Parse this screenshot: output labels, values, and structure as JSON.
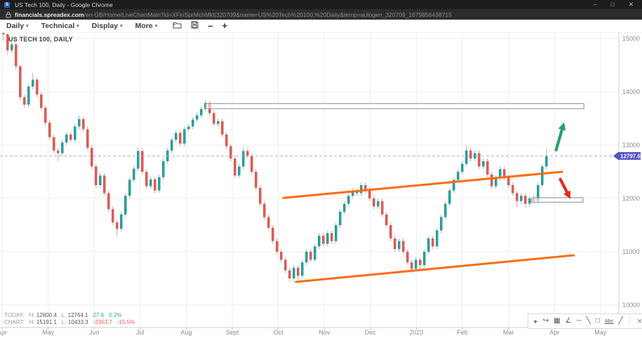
{
  "browser": {
    "title": "US Tech 100, Daily - Google Chrome",
    "favicon_letter": "S",
    "url_domain": "financials.spreadex.com",
    "url_path": "/en-GB/Home/LiveChartMain?id=XFinSprMchMkt|320709&name=US%20Tech%20100,%20Daily&temp=autogen_320709_1679856438715",
    "window_controls": {
      "minimize": "–",
      "maximize": "□",
      "close": "✕"
    }
  },
  "toolbar": {
    "caret": "▾",
    "menus": [
      {
        "label": "Daily"
      },
      {
        "label": "Technical"
      },
      {
        "label": "Display"
      },
      {
        "label": "More"
      }
    ],
    "zoom_out_label": "–",
    "zoom_in_label": "+"
  },
  "chart_title": "US TECH 100, DAILY",
  "stats": {
    "today": {
      "label": "TODAY:",
      "h_label": "H:",
      "h": "12800.4",
      "l_label": "L:",
      "l": "12764.1",
      "chg": "27.6",
      "chg_pct": "0.2%"
    },
    "chart": {
      "label": "CHART:",
      "h_label": "H:",
      "h": "15191.1",
      "l_label": "L:",
      "l": "10433.3",
      "chg": "-2353.7",
      "chg_pct": "-15.5%"
    }
  },
  "drawing_toolbar": {
    "icons": [
      {
        "name": "pointer",
        "glyph": "➤",
        "interactable": true
      },
      {
        "name": "undo",
        "glyph": "↪",
        "interactable": true
      },
      {
        "name": "grid",
        "glyph": "▦",
        "interactable": true
      },
      {
        "name": "axes",
        "glyph": "∠",
        "interactable": true
      },
      {
        "name": "horizontal-line",
        "glyph": "─",
        "interactable": true
      },
      {
        "name": "trendline",
        "glyph": "╲",
        "interactable": true
      },
      {
        "name": "rectangle",
        "glyph": "□",
        "interactable": true
      },
      {
        "name": "text",
        "glyph": "Abc",
        "interactable": true
      },
      {
        "name": "freehand",
        "glyph": "╱",
        "interactable": true
      },
      {
        "name": "divider",
        "glyph": "│",
        "interactable": false
      },
      {
        "name": "close",
        "glyph": "✕",
        "interactable": true
      }
    ]
  },
  "chart_data": {
    "type": "candlestick",
    "symbol": "US TECH 100, DAILY",
    "timeframe": "Daily",
    "current_price": 12797.6,
    "y_ticks": [
      15000,
      14000,
      13000,
      12000,
      11000,
      10000
    ],
    "x_labels": [
      "Apr",
      "May",
      "Jun",
      "Jul",
      "Aug",
      "Sept",
      "Oct",
      "Nov",
      "Dec",
      "2023",
      "Feb",
      "Mar",
      "Apr",
      "May"
    ],
    "colors": {
      "up": "#2a9fa0",
      "down": "#dd5c55",
      "wick": "#a6a6a6",
      "grid": "#ededed",
      "axis": "#cfcfcf",
      "tick_text": "#8c8c8c",
      "price_line": "#a9a9e6",
      "price_tag_bg": "#5452c6",
      "price_tag_text": "#ffffff"
    },
    "candles_ohlc": [
      [
        15190,
        15191,
        14960,
        15080
      ],
      [
        15080,
        15120,
        14700,
        14780
      ],
      [
        14780,
        14940,
        14730,
        14890
      ],
      [
        14890,
        14910,
        14420,
        14480
      ],
      [
        14480,
        14500,
        13840,
        13900
      ],
      [
        13900,
        13950,
        13700,
        13760
      ],
      [
        13760,
        14150,
        13710,
        14100
      ],
      [
        14100,
        14350,
        14050,
        14230
      ],
      [
        14230,
        14280,
        13900,
        13950
      ],
      [
        13950,
        14000,
        13650,
        13700
      ],
      [
        13700,
        13750,
        13370,
        13420
      ],
      [
        13420,
        13470,
        13100,
        13150
      ],
      [
        13150,
        13200,
        12850,
        12900
      ],
      [
        12900,
        12950,
        12700,
        12850
      ],
      [
        12850,
        13100,
        12800,
        13050
      ],
      [
        13050,
        13250,
        13000,
        13200
      ],
      [
        13200,
        13250,
        13050,
        13100
      ],
      [
        13100,
        13400,
        13050,
        13350
      ],
      [
        13350,
        13560,
        13300,
        13490
      ],
      [
        13490,
        13540,
        13250,
        13300
      ],
      [
        13300,
        13350,
        12900,
        12950
      ],
      [
        12950,
        13000,
        12550,
        12600
      ],
      [
        12600,
        12650,
        12200,
        12250
      ],
      [
        12250,
        12480,
        12200,
        12430
      ],
      [
        12430,
        12480,
        12050,
        12100
      ],
      [
        12100,
        12150,
        11750,
        11800
      ],
      [
        11800,
        11850,
        11500,
        11550
      ],
      [
        11550,
        11600,
        11290,
        11430
      ],
      [
        11430,
        11750,
        11380,
        11700
      ],
      [
        11700,
        12100,
        11650,
        12050
      ],
      [
        12050,
        12400,
        12000,
        12350
      ],
      [
        12350,
        12610,
        12300,
        12560
      ],
      [
        12560,
        12960,
        12510,
        12890
      ],
      [
        12890,
        12940,
        12450,
        12500
      ],
      [
        12500,
        12550,
        12180,
        12230
      ],
      [
        12230,
        12410,
        12180,
        12360
      ],
      [
        12360,
        12410,
        12100,
        12150
      ],
      [
        12150,
        12450,
        12100,
        12400
      ],
      [
        12400,
        12750,
        12350,
        12700
      ],
      [
        12700,
        12950,
        12650,
        12900
      ],
      [
        12900,
        13150,
        12850,
        13100
      ],
      [
        13100,
        13280,
        13050,
        13230
      ],
      [
        13230,
        13280,
        12980,
        13030
      ],
      [
        13030,
        13350,
        12980,
        13300
      ],
      [
        13300,
        13400,
        13250,
        13350
      ],
      [
        13350,
        13530,
        13300,
        13480
      ],
      [
        13480,
        13610,
        13430,
        13560
      ],
      [
        13560,
        13730,
        13510,
        13680
      ],
      [
        13680,
        13850,
        13630,
        13790
      ],
      [
        13790,
        13840,
        13550,
        13600
      ],
      [
        13600,
        13650,
        13350,
        13400
      ],
      [
        13400,
        13500,
        13350,
        13450
      ],
      [
        13450,
        13500,
        13150,
        13200
      ],
      [
        13200,
        13250,
        12930,
        12980
      ],
      [
        12980,
        13030,
        12700,
        12750
      ],
      [
        12750,
        12800,
        12380,
        12430
      ],
      [
        12430,
        12650,
        12380,
        12600
      ],
      [
        12600,
        12950,
        12550,
        12890
      ],
      [
        12890,
        12940,
        12750,
        12800
      ],
      [
        12800,
        12850,
        12450,
        12500
      ],
      [
        12500,
        12550,
        12150,
        12200
      ],
      [
        12200,
        12250,
        11850,
        11900
      ],
      [
        11900,
        11950,
        11600,
        11650
      ],
      [
        11650,
        11700,
        11400,
        11450
      ],
      [
        11450,
        11500,
        11150,
        11200
      ],
      [
        11200,
        11250,
        10950,
        11000
      ],
      [
        11000,
        11050,
        10800,
        10850
      ],
      [
        10850,
        10900,
        10600,
        10650
      ],
      [
        10650,
        10700,
        10440,
        10500
      ],
      [
        10500,
        10750,
        10450,
        10700
      ],
      [
        10700,
        10750,
        10433,
        10550
      ],
      [
        10550,
        10850,
        10500,
        10800
      ],
      [
        10800,
        11050,
        10750,
        11000
      ],
      [
        11000,
        11050,
        10800,
        10850
      ],
      [
        10850,
        11150,
        10800,
        11100
      ],
      [
        11100,
        11350,
        11050,
        11300
      ],
      [
        11300,
        11350,
        11100,
        11150
      ],
      [
        11150,
        11400,
        11100,
        11350
      ],
      [
        11350,
        11400,
        11150,
        11200
      ],
      [
        11200,
        11550,
        11150,
        11500
      ],
      [
        11500,
        11800,
        11450,
        11750
      ],
      [
        11750,
        11950,
        11700,
        11900
      ],
      [
        11900,
        12100,
        11850,
        12050
      ],
      [
        12050,
        12200,
        12000,
        12150
      ],
      [
        12150,
        12200,
        12050,
        12100
      ],
      [
        12100,
        12300,
        12050,
        12250
      ],
      [
        12250,
        12300,
        12100,
        12150
      ],
      [
        12150,
        12200,
        11950,
        12000
      ],
      [
        12000,
        12050,
        11800,
        11850
      ],
      [
        11850,
        12000,
        11800,
        11950
      ],
      [
        11950,
        12000,
        11650,
        11700
      ],
      [
        11700,
        11750,
        11450,
        11500
      ],
      [
        11500,
        11550,
        11200,
        11250
      ],
      [
        11250,
        11300,
        11000,
        11050
      ],
      [
        11050,
        11250,
        11000,
        11200
      ],
      [
        11200,
        11250,
        10950,
        11000
      ],
      [
        11000,
        11050,
        10750,
        10800
      ],
      [
        10800,
        10850,
        10600,
        10680
      ],
      [
        10680,
        10900,
        10630,
        10850
      ],
      [
        10850,
        10900,
        10650,
        10750
      ],
      [
        10750,
        11050,
        10700,
        11000
      ],
      [
        11000,
        11300,
        10950,
        11250
      ],
      [
        11250,
        11300,
        11050,
        11100
      ],
      [
        11100,
        11450,
        11050,
        11400
      ],
      [
        11400,
        11700,
        11350,
        11650
      ],
      [
        11650,
        11950,
        11600,
        11900
      ],
      [
        11900,
        12200,
        11850,
        12150
      ],
      [
        12150,
        12400,
        12100,
        12350
      ],
      [
        12350,
        12550,
        12300,
        12500
      ],
      [
        12500,
        12700,
        12450,
        12650
      ],
      [
        12650,
        12990,
        12600,
        12900
      ],
      [
        12900,
        12950,
        12700,
        12750
      ],
      [
        12750,
        12900,
        12700,
        12850
      ],
      [
        12850,
        12900,
        12550,
        12600
      ],
      [
        12600,
        12750,
        12550,
        12700
      ],
      [
        12700,
        12750,
        12400,
        12450
      ],
      [
        12450,
        12500,
        12180,
        12230
      ],
      [
        12230,
        12430,
        12180,
        12380
      ],
      [
        12380,
        12600,
        12330,
        12550
      ],
      [
        12550,
        12600,
        12350,
        12400
      ],
      [
        12400,
        12450,
        12200,
        12250
      ],
      [
        12250,
        12300,
        12050,
        12100
      ],
      [
        12100,
        12150,
        11840,
        11950
      ],
      [
        11950,
        12100,
        11900,
        12050
      ],
      [
        12050,
        12100,
        11830,
        11900
      ],
      [
        11900,
        12050,
        11850,
        12000
      ],
      [
        12000,
        12050,
        11900,
        11950
      ],
      [
        11950,
        12300,
        11900,
        12250
      ],
      [
        12250,
        12650,
        12200,
        12600
      ],
      [
        12600,
        12930,
        12550,
        12798
      ]
    ],
    "annotations": {
      "resistance_boxes": [
        {
          "from_index": 48.3,
          "to_index": 138.2,
          "top_value": 13780,
          "bottom_value": 13685
        },
        {
          "from_index": 125.8,
          "to_index": 138.0,
          "top_value": 12015,
          "bottom_value": 11930
        }
      ],
      "trendlines": [
        {
          "x1_index": 66.8,
          "y1_value": 12010,
          "x2_index": 133.0,
          "y2_value": 12500,
          "color": "#ff6b10"
        },
        {
          "x1_index": 69.8,
          "y1_value": 10434,
          "x2_index": 135.8,
          "y2_value": 10934,
          "color": "#ff6b10"
        }
      ],
      "arrows": [
        {
          "x1_index": 131.6,
          "y1_value": 12910,
          "x2_index": 133.5,
          "y2_value": 13430,
          "color": "#2f9b70",
          "direction": "up"
        },
        {
          "x1_index": 132.6,
          "y1_value": 12360,
          "x2_index": 135.0,
          "y2_value": 11990,
          "color": "#e42b1d",
          "direction": "down"
        }
      ],
      "current_price_line": {
        "value": 12797.6,
        "style": "dashed"
      }
    }
  }
}
